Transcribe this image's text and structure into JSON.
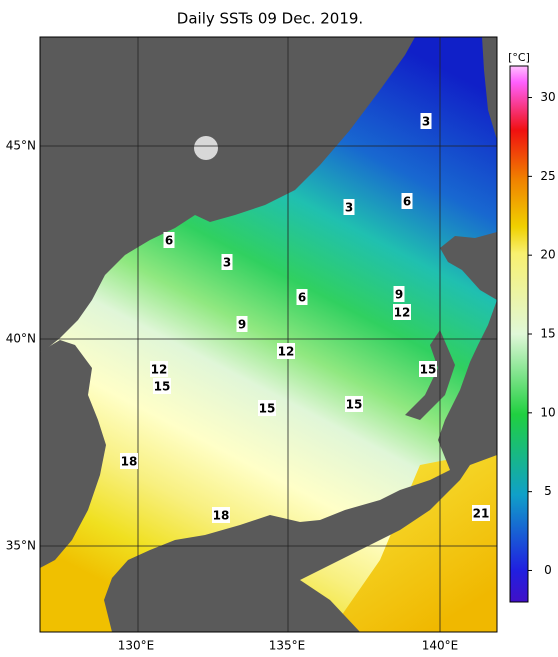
{
  "title": "Daily SSTs 09 Dec. 2019.",
  "map": {
    "lon_labels": [
      "130°E",
      "135°E",
      "140°E"
    ],
    "lat_labels": [
      "45°N",
      "40°N",
      "35°N"
    ],
    "contour_labels": [
      3,
      3,
      6,
      6,
      3,
      6,
      9,
      12,
      9,
      12,
      12,
      15,
      15,
      15,
      15,
      18,
      18,
      21
    ]
  },
  "colorbar": {
    "unit": "[°C]",
    "lim": [
      -2,
      32
    ],
    "ticks": [
      0,
      5,
      10,
      15,
      20,
      25,
      30
    ]
  }
}
